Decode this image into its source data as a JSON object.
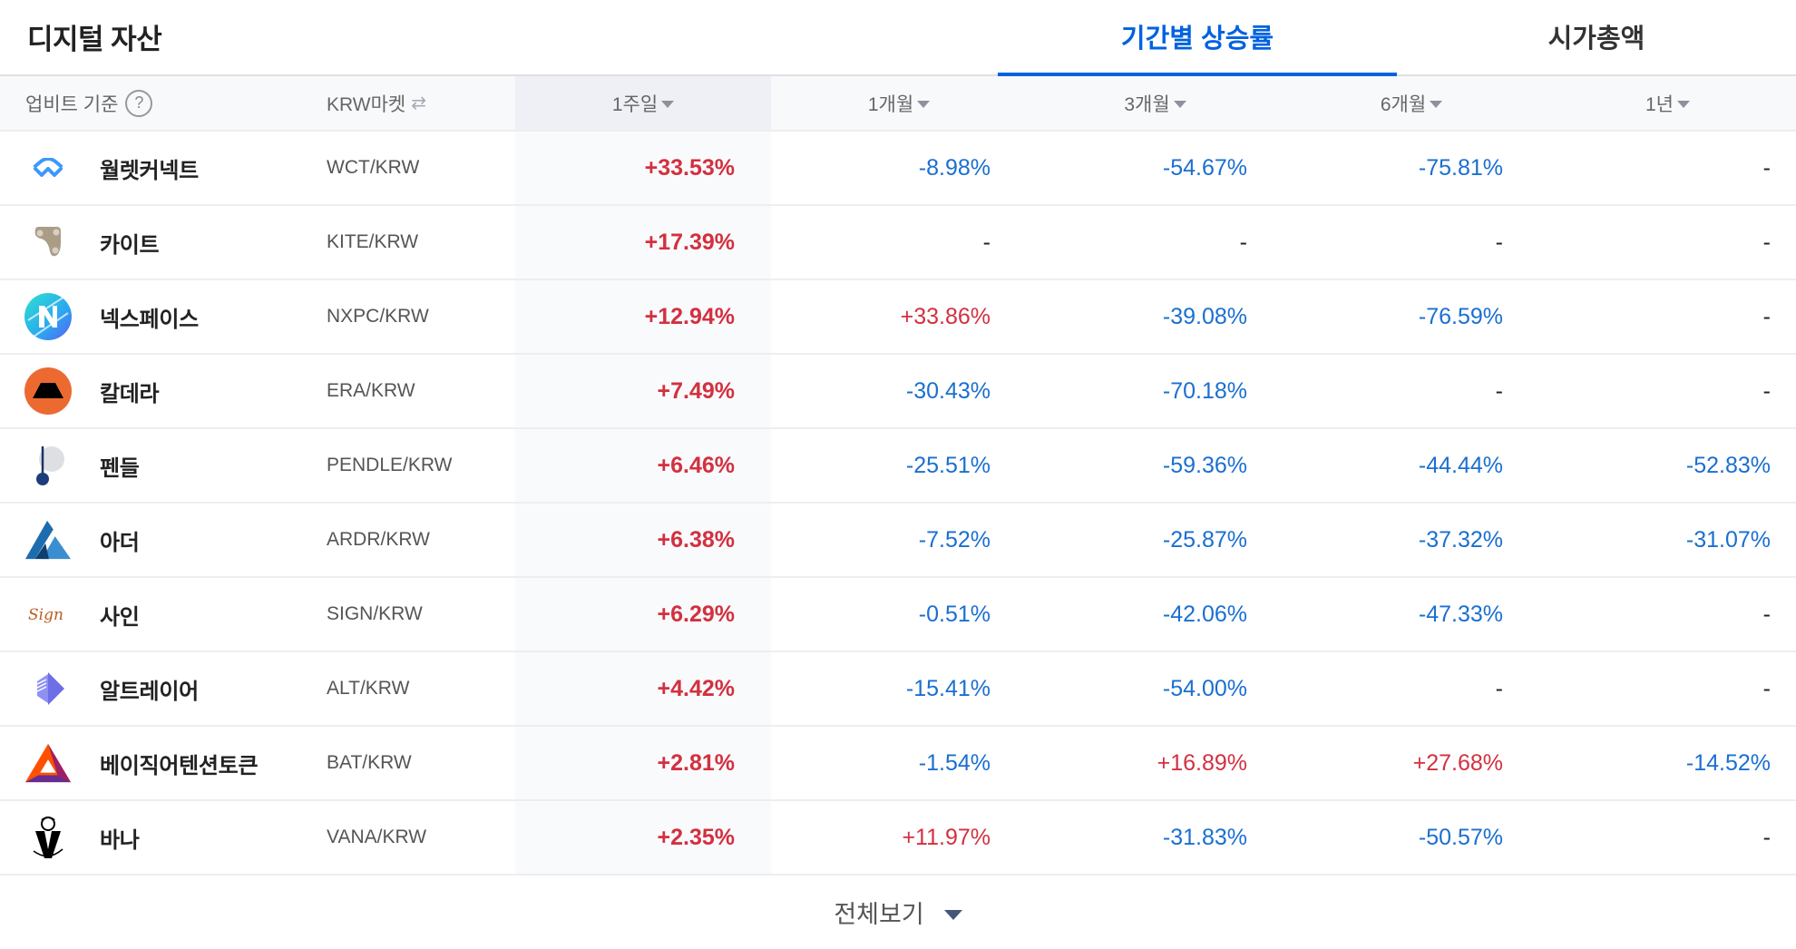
{
  "header": {
    "title": "디지털 자산",
    "tabs": [
      {
        "label": "기간별 상승률",
        "active": true
      },
      {
        "label": "시가총액",
        "active": false
      }
    ]
  },
  "columns": {
    "basis_label": "업비트 기준",
    "help_icon": "question-circle-icon",
    "market_label": "KRW마켓",
    "market_toggle_icon": "swap-arrows-icon",
    "periods": [
      "1주일",
      "1개월",
      "3개월",
      "6개월",
      "1년"
    ],
    "sorted_by": "1주일"
  },
  "colors": {
    "accent": "#0062df",
    "positive": "#d3303f",
    "negative": "#1a6fd0",
    "sorted_column_bg": "#eff0f5"
  },
  "rows": [
    {
      "name": "월렛커넥트",
      "pair": "WCT/KRW",
      "icon": "walletconnect-logo-icon",
      "w1": "+33.53%",
      "m1": "-8.98%",
      "m3": "-54.67%",
      "m6": "-75.81%",
      "y1": "-"
    },
    {
      "name": "카이트",
      "pair": "KITE/KRW",
      "icon": "kite-logo-icon",
      "w1": "+17.39%",
      "m1": "-",
      "m3": "-",
      "m6": "-",
      "y1": "-"
    },
    {
      "name": "넥스페이스",
      "pair": "NXPC/KRW",
      "icon": "nexpace-logo-icon",
      "w1": "+12.94%",
      "m1": "+33.86%",
      "m3": "-39.08%",
      "m6": "-76.59%",
      "y1": "-"
    },
    {
      "name": "칼데라",
      "pair": "ERA/KRW",
      "icon": "caldera-logo-icon",
      "w1": "+7.49%",
      "m1": "-30.43%",
      "m3": "-70.18%",
      "m6": "-",
      "y1": "-"
    },
    {
      "name": "펜들",
      "pair": "PENDLE/KRW",
      "icon": "pendle-logo-icon",
      "w1": "+6.46%",
      "m1": "-25.51%",
      "m3": "-59.36%",
      "m6": "-44.44%",
      "y1": "-52.83%"
    },
    {
      "name": "아더",
      "pair": "ARDR/KRW",
      "icon": "ardor-logo-icon",
      "w1": "+6.38%",
      "m1": "-7.52%",
      "m3": "-25.87%",
      "m6": "-37.32%",
      "y1": "-31.07%"
    },
    {
      "name": "사인",
      "pair": "SIGN/KRW",
      "icon": "sign-logo-icon",
      "w1": "+6.29%",
      "m1": "-0.51%",
      "m3": "-42.06%",
      "m6": "-47.33%",
      "y1": "-"
    },
    {
      "name": "알트레이어",
      "pair": "ALT/KRW",
      "icon": "altlayer-logo-icon",
      "w1": "+4.42%",
      "m1": "-15.41%",
      "m3": "-54.00%",
      "m6": "-",
      "y1": "-"
    },
    {
      "name": "베이직어텐션토큰",
      "pair": "BAT/KRW",
      "icon": "bat-logo-icon",
      "w1": "+2.81%",
      "m1": "-1.54%",
      "m3": "+16.89%",
      "m6": "+27.68%",
      "y1": "-14.52%"
    },
    {
      "name": "바나",
      "pair": "VANA/KRW",
      "icon": "vana-logo-icon",
      "w1": "+2.35%",
      "m1": "+11.97%",
      "m3": "-31.83%",
      "m6": "-50.57%",
      "y1": "-"
    }
  ],
  "footer": {
    "view_all_label": "전체보기",
    "view_all_icon": "caret-down-icon"
  }
}
